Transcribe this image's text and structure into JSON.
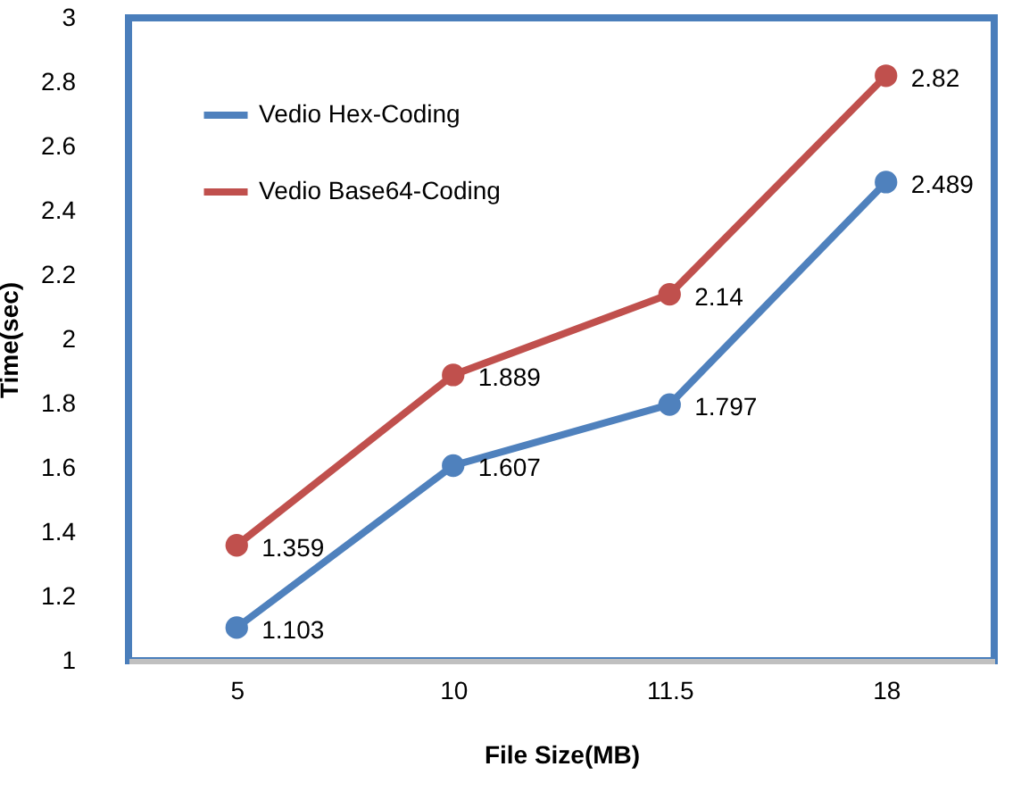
{
  "chart_data": {
    "type": "line",
    "xlabel": "File Size(MB)",
    "ylabel": "Time(sec)",
    "categories": [
      "5",
      "10",
      "11.5",
      "18"
    ],
    "series": [
      {
        "name": "Vedio Hex-Coding",
        "color": "#4f81bd",
        "values": [
          1.103,
          1.607,
          1.797,
          2.489
        ]
      },
      {
        "name": "Vedio Base64-Coding",
        "color": "#c0504d",
        "values": [
          1.359,
          1.889,
          2.14,
          2.82
        ]
      }
    ],
    "ylim": [
      1,
      3
    ],
    "yticks": [
      1,
      1.2,
      1.4,
      1.6,
      1.8,
      2,
      2.2,
      2.4,
      2.6,
      2.8,
      3
    ],
    "grid": false,
    "legend": "top left",
    "marker": "circle",
    "line_style": "solid",
    "data_labels": true
  }
}
